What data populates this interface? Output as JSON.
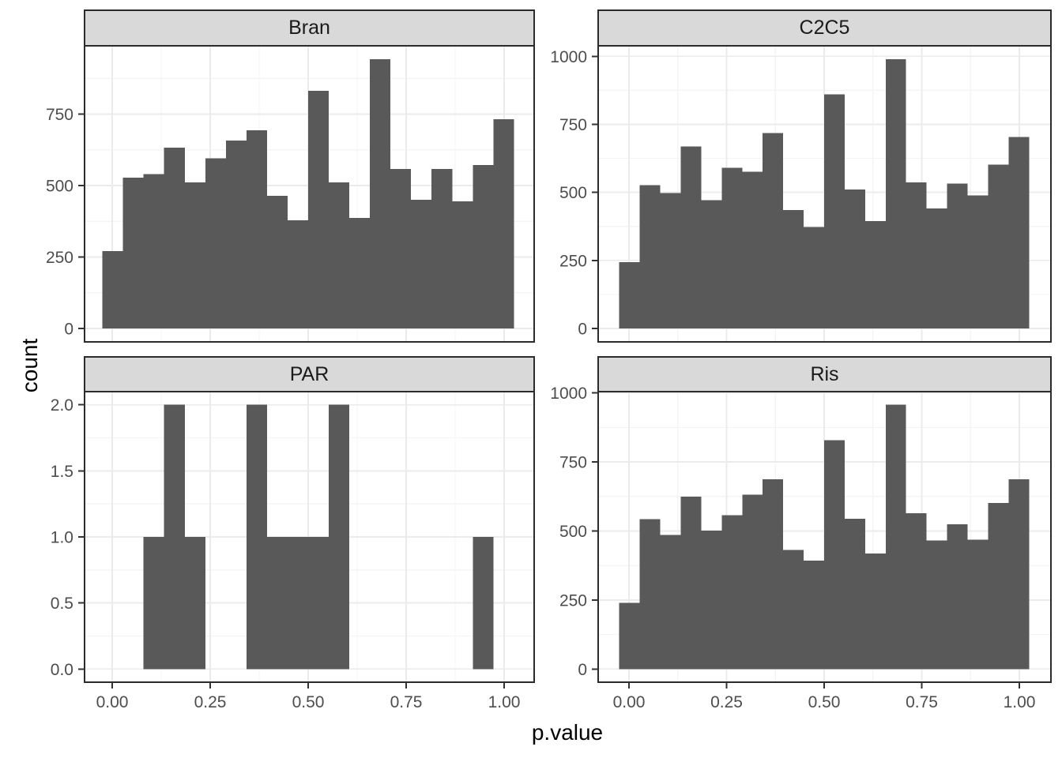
{
  "style": {
    "figure_bg": "#ffffff",
    "panel_bg": "#ffffff",
    "bar_fill": "#595959",
    "strip_bg": "#d9d9d9",
    "strip_border": "#2b2b2b",
    "panel_border": "#2b2b2b",
    "grid_major": "#ebebeb",
    "grid_minor": "#f4f4f4",
    "tick_mark_color": "#333333",
    "tick_label_color": "#4d4d4d",
    "axis_title_color": "#000000"
  },
  "chart_data": {
    "type": "bar",
    "subtype": "faceted-histogram",
    "title": "",
    "xlabel": "p.value",
    "ylabel": "count",
    "grid": true,
    "legend": false,
    "bin_start": -0.025,
    "bin_width": 0.0525,
    "x_ticks": {
      "values": [
        0,
        0.25,
        0.5,
        0.75,
        1.0
      ],
      "labels": [
        "0.00",
        "0.25",
        "0.50",
        "0.75",
        "1.00"
      ]
    },
    "facets": [
      {
        "label": "Bran",
        "row": 0,
        "col": 0,
        "y_ticks": {
          "values": [
            0,
            250,
            500,
            750
          ],
          "labels": [
            "0",
            "250",
            "500",
            "750"
          ]
        },
        "y_max": 942,
        "counts": [
          270,
          528,
          540,
          632,
          511,
          596,
          657,
          693,
          464,
          378,
          831,
          511,
          387,
          942,
          558,
          450,
          558,
          445,
          572,
          732
        ]
      },
      {
        "label": "C2C5",
        "row": 0,
        "col": 1,
        "y_ticks": {
          "values": [
            0,
            250,
            500,
            750,
            1000
          ],
          "labels": [
            "0",
            "250",
            "500",
            "750",
            "1000"
          ]
        },
        "y_max": 989,
        "counts": [
          243,
          527,
          498,
          669,
          472,
          590,
          576,
          718,
          435,
          373,
          860,
          511,
          394,
          989,
          537,
          441,
          532,
          489,
          602,
          703
        ]
      },
      {
        "label": "PAR",
        "row": 1,
        "col": 0,
        "y_ticks": {
          "values": [
            0,
            0.5,
            1,
            1.5,
            2
          ],
          "labels": [
            "0.0",
            "0.5",
            "1.0",
            "1.5",
            "2.0"
          ]
        },
        "y_max": 2,
        "counts": [
          0,
          0,
          1,
          2,
          1,
          0,
          0,
          2,
          1,
          1,
          1,
          2,
          0,
          0,
          0,
          0,
          0,
          0,
          1,
          0
        ]
      },
      {
        "label": "Ris",
        "row": 1,
        "col": 1,
        "y_ticks": {
          "values": [
            0,
            250,
            500,
            750,
            1000
          ],
          "labels": [
            "0",
            "250",
            "500",
            "750",
            "1000"
          ]
        },
        "y_max": 957,
        "counts": [
          239,
          543,
          485,
          625,
          501,
          557,
          632,
          688,
          432,
          393,
          829,
          545,
          419,
          957,
          564,
          465,
          524,
          468,
          602,
          688
        ]
      }
    ]
  }
}
